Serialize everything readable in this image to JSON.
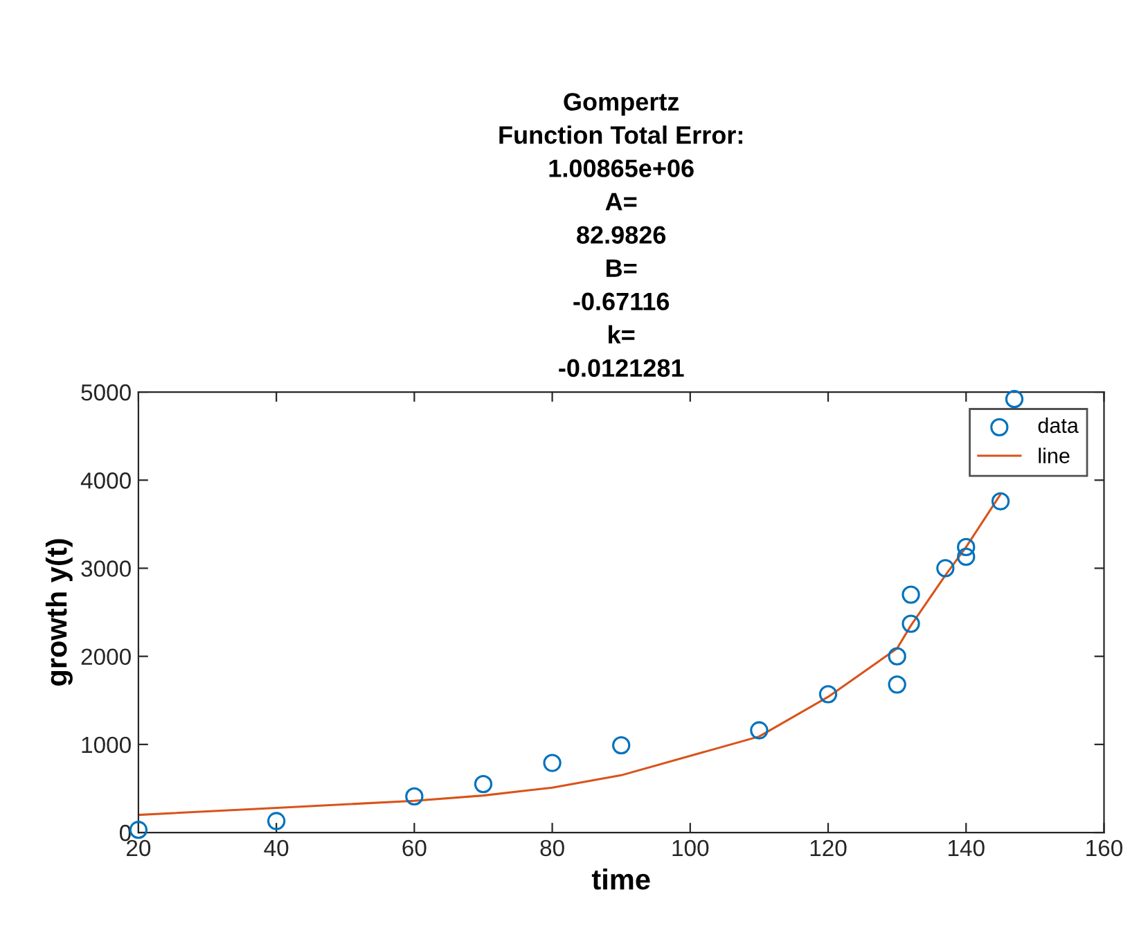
{
  "chart_data": {
    "type": "scatter",
    "title": "Gompertz\nFunction Total Error:\n1.00865e+06\nA=\n82.9826\nB=\n-0.67116\nk=\n-0.0121281",
    "xlabel": "time",
    "ylabel": "growth y(t)",
    "series": [
      {
        "name": "data",
        "marker": "circle",
        "color": "#0072bd",
        "x": [
          20,
          40,
          60,
          70,
          80,
          90,
          110,
          120,
          130,
          130,
          132,
          132,
          137,
          140,
          140,
          145,
          147
        ],
        "values": [
          30,
          130,
          410,
          550,
          790,
          990,
          1160,
          1570,
          2000,
          1680,
          2370,
          2700,
          3000,
          3240,
          3130,
          3760,
          4920
        ]
      },
      {
        "name": "line",
        "type": "line",
        "line_style": "solid",
        "color": "#d95319",
        "x": [
          20,
          40,
          60,
          70,
          80,
          90,
          110,
          120,
          130,
          132,
          137,
          140,
          145
        ],
        "values": [
          200,
          280,
          360,
          420,
          510,
          650,
          1090,
          1540,
          2090,
          2350,
          2920,
          3240,
          3840
        ]
      }
    ],
    "xlim": [
      20,
      160
    ],
    "xticks": [
      20,
      40,
      60,
      80,
      100,
      120,
      140,
      160
    ],
    "ylim": [
      0,
      5000
    ],
    "yticks": [
      0,
      1000,
      2000,
      3000,
      4000,
      5000
    ],
    "legend": "top right",
    "grid": false
  }
}
